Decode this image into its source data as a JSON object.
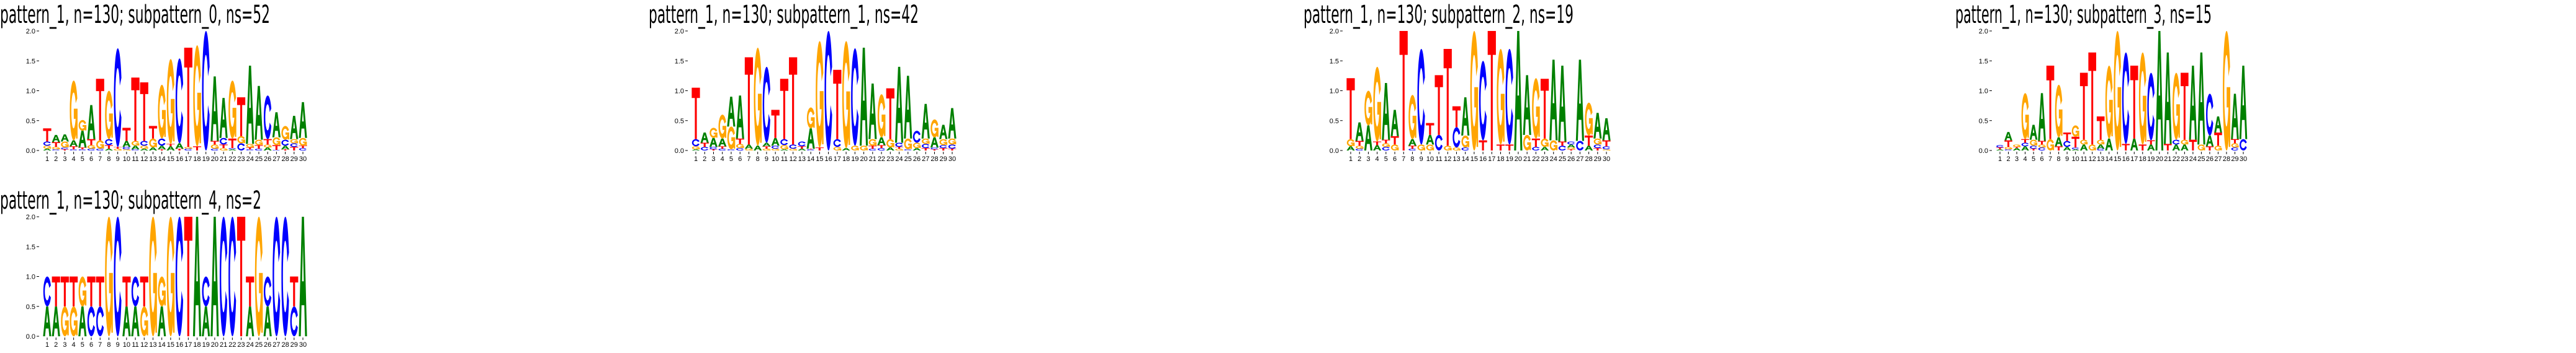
{
  "chart_data": [
    {
      "type": "sequence-logo",
      "title": "pattern_1, n=130; subpattern_0, ns=52",
      "ylim": [
        0,
        2.0
      ],
      "yticks": [
        "0.0",
        "0.5",
        "1.0",
        "1.5",
        "2.0"
      ],
      "xticks": [
        "1",
        "2",
        "3",
        "4",
        "5",
        "6",
        "7",
        "8",
        "9",
        "10",
        "11",
        "12",
        "13",
        "14",
        "15",
        "16",
        "17",
        "18",
        "19",
        "20",
        "21",
        "22",
        "23",
        "24",
        "25",
        "26",
        "27",
        "28",
        "29",
        "30"
      ],
      "positions": [
        "A.03 G.05 C.07 T.22",
        "C.02 G.04 T.08 A.12",
        "T.02 C.03 G.10 A.12",
        "C.02 T.05 A.10 G1.00",
        "C.02 T.03 A.28 G.18",
        "C.03 G.06 T.10 A.57",
        "C.03 G.14 T1.03",
        "A.03 T.06 C.10 G.81",
        "G.03 T.03 C1.65",
        "G.02 C.04 A.10 T.22",
        "C.02 A.06 G.08 T1.06",
        "A.03 G.05 C.08 T.98",
        "A.05 G.15 T.21",
        "T.02 A.06 C.12 G.90",
        "A.07 T.04 G1.42",
        "T.03 A.09 C1.42",
        "C.03 G.03 T1.66",
        "T.07 G1.69",
        "C2.00",
        "C.03 G.07 T.06 A1.08",
        "G.04 T.06 C.11 A.67",
        "A.02 C.02 T.16 G.97",
        "C.12 G.12 T.65",
        "C.02 T.03 G.06 A1.31",
        "C.03 T.06 G.09 A.90",
        "A.05 G.05 T.09 C.73",
        "C.01 T.08 G.13 A.42",
        "T.02 A.06 C.10 G.23",
        "T.06 C.06 G.07 A.39",
        "C.04 T.04 G.13 A.60"
      ]
    },
    {
      "type": "sequence-logo",
      "title": "pattern_1, n=130; subpattern_1, ns=42",
      "ylim": [
        0,
        2.0
      ],
      "yticks": [
        "0.0",
        "0.5",
        "1.0",
        "1.5",
        "2.0"
      ],
      "xticks": [
        "1",
        "2",
        "3",
        "4",
        "5",
        "6",
        "7",
        "8",
        "9",
        "10",
        "11",
        "12",
        "13",
        "14",
        "15",
        "16",
        "17",
        "18",
        "19",
        "20",
        "21",
        "22",
        "23",
        "24",
        "25",
        "26",
        "27",
        "28",
        "29",
        "30"
      ],
      "positions": [
        "A.02 G.05 C.12 T.86",
        "C.06 T.07 A.17",
        "T.02 C.04 A.15 G.17",
        "C.03 T.04 A.13 G.40",
        "C.02 G.38 A.50",
        "C.04 G.07 T.09 A.72",
        "G.03 A.07 T1.46",
        "A.08 G1.64",
        "G.03 T.04 A.06 C1.27",
        "G.03 C.05 A.13 T.47",
        "A.02 G.07 C.10 T1.01",
        "G.03 C.07 T1.46",
        "A.03 T.04 C.08",
        "C.02 T.01 A.34 G.35",
        "T.05 G1.78",
        "C2.00",
        "G.06 C.13 T1.16",
        "A.04 G1.79",
        "G.08 C1.63",
        "G.08 A1.64",
        "C.03 T.05 G.11 A.93",
        "C.04 T.05 A.13 G.72",
        "A.05 G.14 T.85",
        "G.03 T.03 C.07 A1.27",
        "C.02 G.18 A1.05",
        "A.04 G.09 C.20",
        "T.04 C.07 G.09 A.58",
        "T.02 C.03 A.17 G.30",
        "T.04 C.05 G.10 A.24",
        "T.03 C.07 G.10 A.51"
      ]
    },
    {
      "type": "sequence-logo",
      "title": "pattern_1, n=130; subpattern_2, ns=19",
      "ylim": [
        0,
        2.0
      ],
      "yticks": [
        "0.0",
        "0.5",
        "1.0",
        "1.5",
        "2.0"
      ],
      "xticks": [
        "1",
        "2",
        "3",
        "4",
        "5",
        "6",
        "7",
        "8",
        "9",
        "10",
        "11",
        "12",
        "13",
        "14",
        "15",
        "16",
        "17",
        "18",
        "19",
        "20",
        "21",
        "22",
        "23",
        "24",
        "25",
        "26",
        "27",
        "28",
        "29",
        "30"
      ],
      "positions": [
        "A.07 G.12 T1.02",
        "C.03 G.05 T.08 A.31",
        "A.42 G.58",
        "A.09 T.06 G1.25",
        "C.06 G.06 T.06 A.95",
        "G.10 T.14 A.44",
        "T2.00",
        "C.03 T.05 A.11 G.74",
        "G.10 C1.60",
        "G.10 A.16 T.20",
        "C.26 T1.00",
        "G.08 T1.62",
        "G.05 C.34 T.35",
        "C.05 G.20 A.64",
        "G2.00",
        "T.17 C1.33",
        "T2.00",
        "T.10 G1.60",
        "T.10 C1.60",
        "A2.00",
        "G.26 A1.00",
        "C.06 T.14 G1.01",
        "A.06 G.14 T1.00",
        "G.17 A1.35",
        "C.08 T.07 A1.27",
        "T.02 G.03 A.05 C.05",
        "C.16 A1.36",
        "A.08 T.17 G.55",
        "T.04 C.06 G.10 A.43",
        "G.02 C.05 T.10 A.37"
      ]
    },
    {
      "type": "sequence-logo",
      "title": "pattern_1, n=130; subpattern_3, ns=15",
      "ylim": [
        0,
        2.0
      ],
      "yticks": [
        "0.0",
        "0.5",
        "1.0",
        "1.5",
        "2.0"
      ],
      "xticks": [
        "1",
        "2",
        "3",
        "4",
        "5",
        "6",
        "7",
        "8",
        "9",
        "10",
        "11",
        "12",
        "13",
        "14",
        "15",
        "16",
        "17",
        "18",
        "19",
        "20",
        "21",
        "22",
        "23",
        "24",
        "25",
        "26",
        "27",
        "28",
        "29",
        "30"
      ],
      "positions": [
        "A.02 T.03 C.04",
        "C.02 G.04 T.11 A.14",
        "A.04 T.02 G.04",
        "A.07 C.06 T.06 G.77",
        "T.03 C.05 G.10 A.25",
        "C.05 G.05 T.06 A.80",
        "G.19 T1.23",
        "T.07 A.15 G.88",
        "A.06 C.10 T.14",
        "A.02 C.03 T.18 G.19",
        "A.10 G.08 T1.12",
        "G.10 T1.54",
        "C.03 A.07 G.08 T.39",
        "A.20 G1.22",
        "G2.00",
        "T.11 C1.53",
        "A.20 T1.22",
        "T.10 G1.54",
        "A.10 T.07 C1.13",
        "A2.00",
        "T.11 A1.53",
        "A.10 C.08 G1.12",
        "A.10 G.08 T1.12",
        "T.18 A1.24",
        "G.10 A1.54",
        "T.07 A.18 C.70",
        "G.08 T.22 A.27",
        "G2.00",
        "C.05 G.07 T.07 A.76",
        "C.19 A1.23"
      ]
    },
    {
      "type": "sequence-logo",
      "title": "pattern_1, n=130; subpattern_4, ns=2",
      "ylim": [
        0,
        2.0
      ],
      "yticks": [
        "0.0",
        "0.5",
        "1.0",
        "1.5",
        "2.0"
      ],
      "xticks": [
        "1",
        "2",
        "3",
        "4",
        "5",
        "6",
        "7",
        "8",
        "9",
        "10",
        "11",
        "12",
        "13",
        "14",
        "15",
        "16",
        "17",
        "18",
        "19",
        "20",
        "21",
        "22",
        "23",
        "24",
        "25",
        "26",
        "27",
        "28",
        "29",
        "30"
      ],
      "positions": [
        "A.50 C.50",
        "A.50 T.50",
        "G.50 T.50",
        "G.50 T.50",
        "A.50 G.50",
        "C.50 T.50",
        "C.50 T.50",
        "G2.00",
        "C2.00",
        "A.50 T.50",
        "A.50 C.50",
        "G.50 T.50",
        "G2.00",
        "A.50 G.50",
        "G2.00",
        "C2.00",
        "T2.00",
        "A2.00",
        "A.50 C.50",
        "A2.00",
        "C2.00",
        "C2.00",
        "T2.00",
        "A.50 T.50",
        "G2.00",
        "A.50 C.50",
        "C2.00",
        "C2.00",
        "C.50 T.50",
        "A2.00"
      ]
    }
  ],
  "colors": {
    "A": "#008000",
    "C": "#0000ff",
    "G": "#ffa500",
    "T": "#ff0000"
  }
}
